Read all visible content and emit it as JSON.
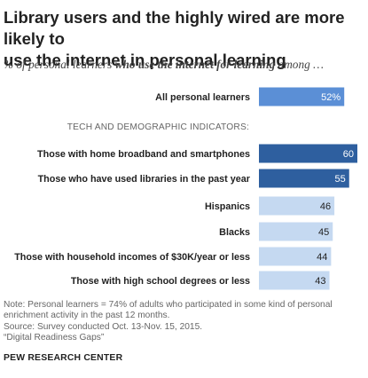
{
  "title_line1": "Library users and the highly wired are more likely to",
  "title_line2": "use the internet in personal learning",
  "subtitle_pre": "% of personal learners ",
  "subtitle_em": "who use the internet for learning",
  "subtitle_post": " among …",
  "section_label": "TECH AND DEMOGRAPHIC INDICATORS:",
  "note_lines": [
    "Note: Personal learners = 74% of adults who participated in some kind of personal",
    "enrichment activity in the past 12 months.",
    "Source: Survey conducted Oct. 13-Nov. 15, 2015.",
    "“Digital Readiness Gaps”"
  ],
  "credit": "PEW RESEARCH CENTER",
  "colors": {
    "highlight": "#5b8fd6",
    "dark": "#2e5f9f",
    "light": "#c5d9f1"
  },
  "chart_data": {
    "type": "bar",
    "orientation": "horizontal",
    "xlim": [
      0,
      60
    ],
    "categories": [
      "All personal learners",
      "Those with home broadband and smartphones",
      "Those who have used libraries in the past year",
      "Hispanics",
      "Blacks",
      "Those with household incomes of $30K/year or less",
      "Those with high school degrees or less"
    ],
    "values": [
      52,
      60,
      55,
      46,
      45,
      44,
      43
    ],
    "value_labels": [
      "52%",
      "60",
      "55",
      "46",
      "45",
      "44",
      "43"
    ],
    "bar_styles": [
      "highlight",
      "dark",
      "dark",
      "light",
      "light",
      "light",
      "light"
    ]
  }
}
